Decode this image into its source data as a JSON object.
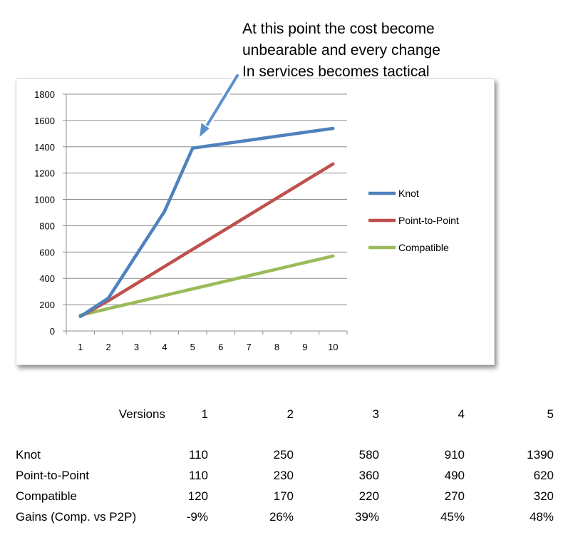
{
  "annotation": {
    "lines": [
      "At this point the cost become",
      "unbearable and every change",
      "In services becomes tactical"
    ]
  },
  "chart_data": {
    "type": "line",
    "x": [
      1,
      2,
      3,
      4,
      5,
      6,
      7,
      8,
      9,
      10
    ],
    "series": [
      {
        "name": "Knot",
        "color": "#4f81bd",
        "values": [
          110,
          250,
          580,
          910,
          1390,
          1420,
          1450,
          1480,
          1510,
          1540
        ]
      },
      {
        "name": "Point-to-Point",
        "color": "#c0504d",
        "values": [
          110,
          230,
          360,
          490,
          620,
          750,
          880,
          1010,
          1140,
          1270
        ]
      },
      {
        "name": "Compatible",
        "color": "#9bbb59",
        "values": [
          120,
          170,
          220,
          270,
          320,
          370,
          420,
          470,
          520,
          570
        ]
      }
    ],
    "yticks": [
      0,
      200,
      400,
      600,
      800,
      1000,
      1200,
      1400,
      1600,
      1800
    ],
    "ylim": [
      0,
      1800
    ],
    "xlim": [
      1,
      10
    ],
    "grid": true,
    "legend": "right",
    "title": "",
    "xlabel": "",
    "ylabel": ""
  },
  "table": {
    "header_label": "Versions",
    "versions": [
      "1",
      "2",
      "3",
      "4",
      "5"
    ],
    "rows": [
      {
        "label": "Knot",
        "values": [
          "110",
          "250",
          "580",
          "910",
          "1390"
        ]
      },
      {
        "label": "Point-to-Point",
        "values": [
          "110",
          "230",
          "360",
          "490",
          "620"
        ]
      },
      {
        "label": "Compatible",
        "values": [
          "120",
          "170",
          "220",
          "270",
          "320"
        ]
      },
      {
        "label": "Gains (Comp. vs P2P)",
        "values": [
          "-9%",
          "26%",
          "39%",
          "45%",
          "48%"
        ]
      }
    ]
  }
}
